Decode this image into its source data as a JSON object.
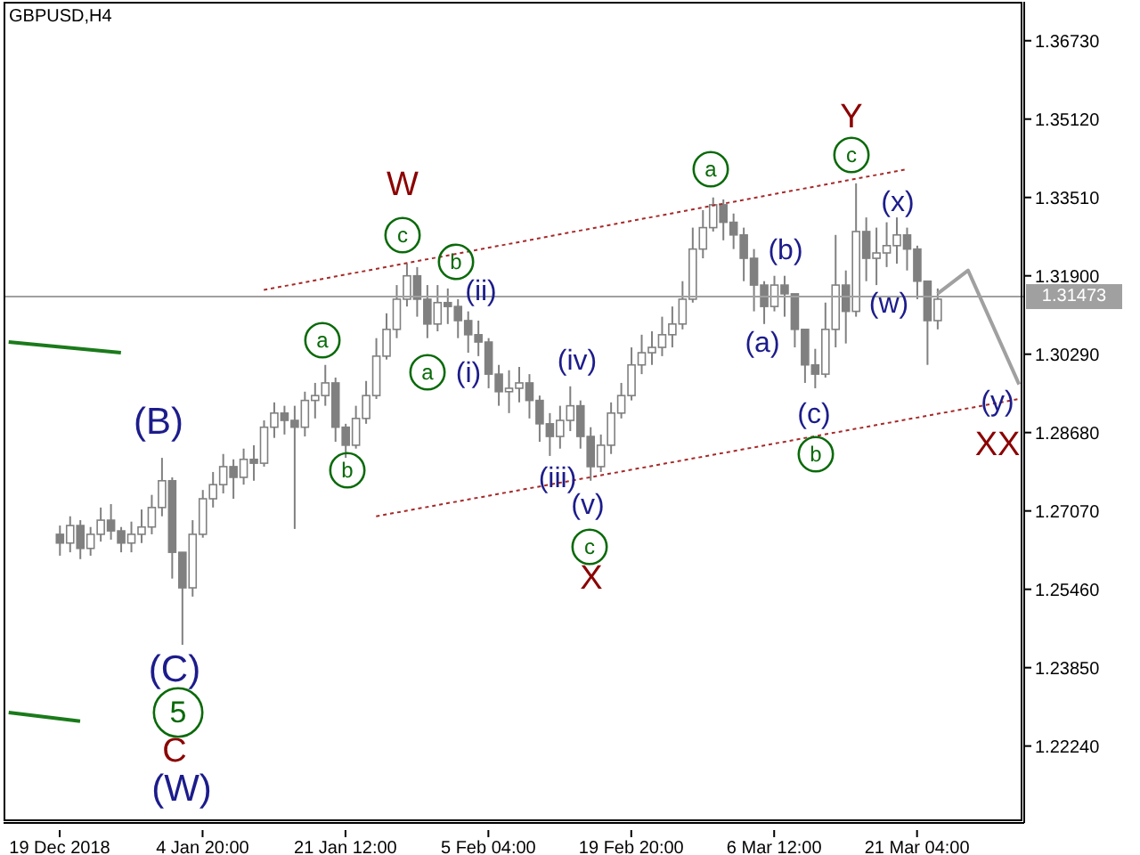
{
  "chart_data": {
    "type": "candlestick",
    "title": "GBPUSD,H4",
    "color": "#808080",
    "categories": [
      null,
      null,
      null,
      null,
      null,
      "19 Dec 2018",
      null,
      null,
      null,
      null,
      null,
      null,
      null,
      null,
      null,
      null,
      null,
      null,
      null,
      "4 Jan 20:00",
      null,
      null,
      null,
      null,
      null,
      null,
      null,
      null,
      null,
      null,
      null,
      null,
      null,
      "21 Jan 12:00",
      null,
      null,
      null,
      null,
      null,
      null,
      null,
      null,
      null,
      null,
      null,
      null,
      null,
      "5 Feb 04:00",
      null,
      null,
      null,
      null,
      null,
      null,
      null,
      null,
      null,
      null,
      null,
      null,
      null,
      "19 Feb 20:00",
      null,
      null,
      null,
      null,
      null,
      null,
      null,
      null,
      null,
      null,
      null,
      null,
      null,
      "6 Mar 12:00",
      null,
      null,
      null,
      null,
      null,
      null,
      null,
      null,
      null,
      null,
      null,
      null,
      null,
      "21 Mar 04:00",
      null,
      null,
      null,
      null,
      null,
      null,
      null,
      null,
      null,
      null
    ],
    "ohlc": [
      null,
      null,
      null,
      null,
      null,
      [
        1.2659,
        1.2677,
        1.2615,
        1.2641
      ],
      [
        1.2641,
        1.2696,
        1.2622,
        1.2677
      ],
      [
        1.2677,
        1.2688,
        1.2608,
        1.263
      ],
      [
        1.263,
        1.2674,
        1.2615,
        1.2659
      ],
      [
        1.2659,
        1.2714,
        1.2644,
        1.2688
      ],
      [
        1.2688,
        1.2721,
        1.2648,
        1.2666
      ],
      [
        1.2666,
        1.2674,
        1.2622,
        1.2641
      ],
      [
        1.2641,
        1.2685,
        1.2622,
        1.2659
      ],
      [
        1.2659,
        1.271,
        1.2641,
        1.2674
      ],
      [
        1.2674,
        1.274,
        1.2659,
        1.2714
      ],
      [
        1.2714,
        1.2816,
        1.2696,
        1.2769
      ],
      [
        1.2769,
        1.2776,
        1.2568,
        1.2622
      ],
      [
        1.2622,
        1.2622,
        1.2432,
        1.2549
      ],
      [
        1.2549,
        1.2688,
        1.2531,
        1.2659
      ],
      [
        1.2659,
        1.275,
        1.2652,
        1.2732
      ],
      [
        1.2732,
        1.2787,
        1.2714,
        1.2761
      ],
      [
        1.2761,
        1.2824,
        1.2743,
        1.2798
      ],
      [
        1.2798,
        1.2813,
        1.2732,
        1.2776
      ],
      [
        1.2776,
        1.2835,
        1.2761,
        1.2813
      ],
      [
        1.2813,
        1.2842,
        1.2769,
        1.2805
      ],
      [
        1.2805,
        1.2893,
        1.2798,
        1.2879
      ],
      [
        1.2879,
        1.293,
        1.2857,
        1.2908
      ],
      [
        1.2908,
        1.2923,
        1.2864,
        1.2893
      ],
      [
        1.2893,
        1.2923,
        1.267,
        1.2879
      ],
      [
        1.2879,
        1.2952,
        1.286,
        1.2934
      ],
      [
        1.2934,
        1.297,
        1.2897,
        1.2944
      ],
      [
        1.2944,
        1.3007,
        1.2923,
        1.297
      ],
      [
        1.297,
        1.2981,
        1.2849,
        1.2879
      ],
      [
        1.2879,
        1.2886,
        1.2816,
        1.2842
      ],
      [
        1.2842,
        1.2923,
        1.2835,
        1.2897
      ],
      [
        1.2897,
        1.2974,
        1.2886,
        1.2944
      ],
      [
        1.2944,
        1.3062,
        1.2937,
        1.3025
      ],
      [
        1.3025,
        1.3113,
        1.3018,
        1.308
      ],
      [
        1.308,
        1.3171,
        1.3062,
        1.3142
      ],
      [
        1.3142,
        1.3215,
        1.3127,
        1.319
      ],
      [
        1.319,
        1.3208,
        1.3106,
        1.3142
      ],
      [
        1.3142,
        1.3171,
        1.3062,
        1.3091
      ],
      [
        1.3091,
        1.3171,
        1.3076,
        1.3135
      ],
      [
        1.3135,
        1.3164,
        1.3091,
        1.3127
      ],
      [
        1.3127,
        1.3142,
        1.3062,
        1.3098
      ],
      [
        1.3098,
        1.3117,
        1.3032,
        1.3069
      ],
      [
        1.3069,
        1.3098,
        1.3025,
        1.3054
      ],
      [
        1.3054,
        1.3062,
        1.2959,
        1.2988
      ],
      [
        1.2988,
        1.3007,
        1.2923,
        1.2952
      ],
      [
        1.2952,
        1.2996,
        1.2908,
        1.2959
      ],
      [
        1.2959,
        1.3003,
        1.293,
        1.297
      ],
      [
        1.297,
        1.2988,
        1.2897,
        1.2934
      ],
      [
        1.2934,
        1.2944,
        1.2849,
        1.2886
      ],
      [
        1.2886,
        1.2908,
        1.282,
        1.286
      ],
      [
        1.286,
        1.2923,
        1.2835,
        1.2893
      ],
      [
        1.2893,
        1.2963,
        1.2871,
        1.2923
      ],
      [
        1.2923,
        1.2934,
        1.2835,
        1.286
      ],
      [
        1.286,
        1.2879,
        1.2769,
        1.2798
      ],
      [
        1.2798,
        1.2864,
        1.2787,
        1.2842
      ],
      [
        1.2842,
        1.293,
        1.2824,
        1.2908
      ],
      [
        1.2908,
        1.297,
        1.2897,
        1.2944
      ],
      [
        1.2944,
        1.3043,
        1.2934,
        1.3007
      ],
      [
        1.3007,
        1.3069,
        1.2988,
        1.3032
      ],
      [
        1.3032,
        1.3076,
        1.3007,
        1.3043
      ],
      [
        1.3043,
        1.3106,
        1.3025,
        1.3069
      ],
      [
        1.3069,
        1.3127,
        1.3043,
        1.3091
      ],
      [
        1.3091,
        1.3179,
        1.308,
        1.3142
      ],
      [
        1.3142,
        1.3289,
        1.3135,
        1.3245
      ],
      [
        1.3245,
        1.3325,
        1.3226,
        1.3289
      ],
      [
        1.3289,
        1.3351,
        1.3281,
        1.3336
      ],
      [
        1.3336,
        1.3347,
        1.3263,
        1.33
      ],
      [
        1.33,
        1.3318,
        1.3245,
        1.3274
      ],
      [
        1.3274,
        1.3289,
        1.3179,
        1.3226
      ],
      [
        1.3226,
        1.3245,
        1.3117,
        1.3171
      ],
      [
        1.3171,
        1.3179,
        1.3091,
        1.3127
      ],
      [
        1.3127,
        1.319,
        1.3117,
        1.3171
      ],
      [
        1.3171,
        1.319,
        1.3106,
        1.3153
      ],
      [
        1.3153,
        1.3153,
        1.3043,
        1.308
      ],
      [
        1.308,
        1.308,
        1.297,
        1.3007
      ],
      [
        1.3007,
        1.304,
        1.2959,
        1.2988
      ],
      [
        1.2988,
        1.3135,
        1.2981,
        1.308
      ],
      [
        1.308,
        1.3274,
        1.3043,
        1.3171
      ],
      [
        1.3171,
        1.3201,
        1.3051,
        1.3117
      ],
      [
        1.3117,
        1.338,
        1.3106,
        1.3281
      ],
      [
        1.3281,
        1.331,
        1.3179,
        1.3226
      ],
      [
        1.3226,
        1.3289,
        1.3171,
        1.3237
      ],
      [
        1.3237,
        1.33,
        1.3208,
        1.3252
      ],
      [
        1.3252,
        1.331,
        1.3215,
        1.3274
      ],
      [
        1.3274,
        1.3289,
        1.3201,
        1.3245
      ],
      [
        1.3245,
        1.3252,
        1.3142,
        1.3179
      ],
      [
        1.3179,
        1.3179,
        1.3007,
        1.3098
      ],
      [
        1.3098,
        1.3164,
        1.308,
        1.3142
      ],
      null,
      null,
      null,
      null,
      null,
      null,
      null,
      null
    ],
    "series": [
      {
        "type": "line",
        "color": "#a52a2a",
        "line_style": "dotted",
        "values": [
          null,
          null,
          null,
          null,
          null,
          null,
          null,
          null,
          null,
          null,
          null,
          null,
          null,
          null,
          null,
          null,
          null,
          null,
          null,
          null,
          null,
          null,
          null,
          null,
          null,
          1.3161,
          null,
          null,
          null,
          null,
          null,
          null,
          null,
          null,
          null,
          null,
          null,
          null,
          null,
          null,
          null,
          null,
          null,
          null,
          null,
          null,
          null,
          null,
          null,
          null,
          null,
          null,
          null,
          null,
          null,
          null,
          null,
          null,
          null,
          null,
          null,
          null,
          null,
          null,
          null,
          null,
          null,
          null,
          null,
          null,
          null,
          null,
          null,
          null,
          null,
          null,
          null,
          null,
          null,
          null,
          null,
          null,
          null,
          null,
          null,
          null,
          null,
          null,
          1.3409,
          null,
          null,
          null,
          null,
          null,
          null,
          null,
          null,
          null,
          null,
          null
        ]
      },
      {
        "type": "line",
        "color": "#a52a2a",
        "line_style": "dotted",
        "values": [
          null,
          null,
          null,
          null,
          null,
          null,
          null,
          null,
          null,
          null,
          null,
          null,
          null,
          null,
          null,
          null,
          null,
          null,
          null,
          null,
          null,
          null,
          null,
          null,
          null,
          null,
          null,
          null,
          null,
          null,
          null,
          null,
          null,
          null,
          null,
          null,
          1.2696,
          null,
          null,
          null,
          null,
          null,
          null,
          null,
          null,
          null,
          null,
          null,
          null,
          null,
          null,
          null,
          null,
          null,
          null,
          null,
          null,
          null,
          null,
          null,
          null,
          null,
          null,
          null,
          null,
          null,
          null,
          null,
          null,
          null,
          null,
          null,
          null,
          null,
          null,
          null,
          null,
          null,
          null,
          null,
          null,
          null,
          null,
          null,
          null,
          null,
          null,
          null,
          null,
          null,
          null,
          null,
          null,
          null,
          null,
          null,
          null,
          null,
          null,
          1.2937
        ]
      },
      {
        "type": "line",
        "color": "#a0a0a0",
        "line_style": "solid",
        "values": [
          null,
          null,
          null,
          null,
          null,
          null,
          null,
          null,
          null,
          null,
          null,
          null,
          null,
          null,
          null,
          null,
          null,
          null,
          null,
          null,
          null,
          null,
          null,
          null,
          null,
          null,
          null,
          null,
          null,
          null,
          null,
          null,
          null,
          null,
          null,
          null,
          null,
          null,
          null,
          null,
          null,
          null,
          null,
          null,
          null,
          null,
          null,
          null,
          null,
          null,
          null,
          null,
          null,
          null,
          null,
          null,
          null,
          null,
          null,
          null,
          null,
          null,
          null,
          null,
          null,
          null,
          null,
          null,
          null,
          null,
          null,
          null,
          null,
          null,
          null,
          null,
          null,
          null,
          null,
          null,
          null,
          null,
          null,
          null,
          null,
          null,
          null,
          null,
          null,
          null,
          null,
          1.3153,
          null,
          null,
          1.3201,
          null,
          null,
          null,
          null,
          1.2967
        ]
      },
      {
        "type": "line",
        "color": "#1a7a1a",
        "line_style": "solid",
        "values": [
          1.3054,
          null,
          null,
          null,
          null,
          null,
          null,
          null,
          null,
          null,
          null,
          1.3032,
          null,
          null,
          null,
          null,
          null,
          null,
          null,
          null,
          null,
          null,
          null,
          null,
          null,
          null,
          null,
          null,
          null,
          null,
          null,
          null,
          null,
          null,
          null,
          null,
          null,
          null,
          null,
          null,
          null,
          null,
          null,
          null,
          null,
          null,
          null,
          null,
          null,
          null,
          null,
          null,
          null,
          null,
          null,
          null,
          null,
          null,
          null,
          null,
          null,
          null,
          null,
          null,
          null,
          null,
          null,
          null,
          null,
          null,
          null,
          null,
          null,
          null,
          null,
          null,
          null,
          null,
          null,
          null,
          null,
          null,
          null,
          null,
          null,
          null,
          null,
          null,
          null,
          null,
          null,
          null,
          null,
          null,
          null,
          null,
          null,
          null,
          null,
          null
        ]
      },
      {
        "type": "line",
        "color": "#1a7a1a",
        "line_style": "solid",
        "values": [
          1.2293,
          null,
          null,
          null,
          null,
          null,
          null,
          1.2275,
          null,
          null,
          null,
          null,
          null,
          null,
          null,
          null,
          null,
          null,
          null,
          null,
          null,
          null,
          null,
          null,
          null,
          null,
          null,
          null,
          null,
          null,
          null,
          null,
          null,
          null,
          null,
          null,
          null,
          null,
          null,
          null,
          null,
          null,
          null,
          null,
          null,
          null,
          null,
          null,
          null,
          null,
          null,
          null,
          null,
          null,
          null,
          null,
          null,
          null,
          null,
          null,
          null,
          null,
          null,
          null,
          null,
          null,
          null,
          null,
          null,
          null,
          null,
          null,
          null,
          null,
          null,
          null,
          null,
          null,
          null,
          null,
          null,
          null,
          null,
          null,
          null,
          null,
          null,
          null,
          null,
          null,
          null,
          null,
          null,
          null,
          null,
          null,
          null,
          null,
          null,
          null
        ]
      }
    ],
    "ylim": [
      1.2066,
      1.3753
    ],
    "yticks": [
      {
        "value": 1.2224,
        "label": "1.22240"
      },
      {
        "value": 1.2385,
        "label": "1.23850"
      },
      {
        "value": 1.2546,
        "label": "1.25460"
      },
      {
        "value": 1.2707,
        "label": "1.27070"
      },
      {
        "value": 1.2868,
        "label": "1.28680"
      },
      {
        "value": 1.3029,
        "label": "1.30290"
      },
      {
        "value": 1.319,
        "label": "1.31900"
      },
      {
        "value": 1.3351,
        "label": "1.33510"
      },
      {
        "value": 1.3512,
        "label": "1.35120"
      },
      {
        "value": 1.3673,
        "label": "1.36730"
      }
    ],
    "ref_lines": [
      {
        "axis": "y",
        "value": 1.31473,
        "label": "1.31473",
        "color": "#a0a0a0"
      }
    ],
    "annotations": [
      "W",
      "c",
      "b",
      "(ii)",
      "a",
      "a",
      "(i)",
      "(iv)",
      "(B)",
      "b",
      "(iii)",
      "(v)",
      "c",
      "X",
      "(C)",
      "5",
      "C",
      "(W)",
      "a",
      "Y",
      "c",
      "(x)",
      "(b)",
      "(w)",
      "(a)",
      "(c)",
      "b",
      "(y)",
      "XX"
    ]
  }
}
